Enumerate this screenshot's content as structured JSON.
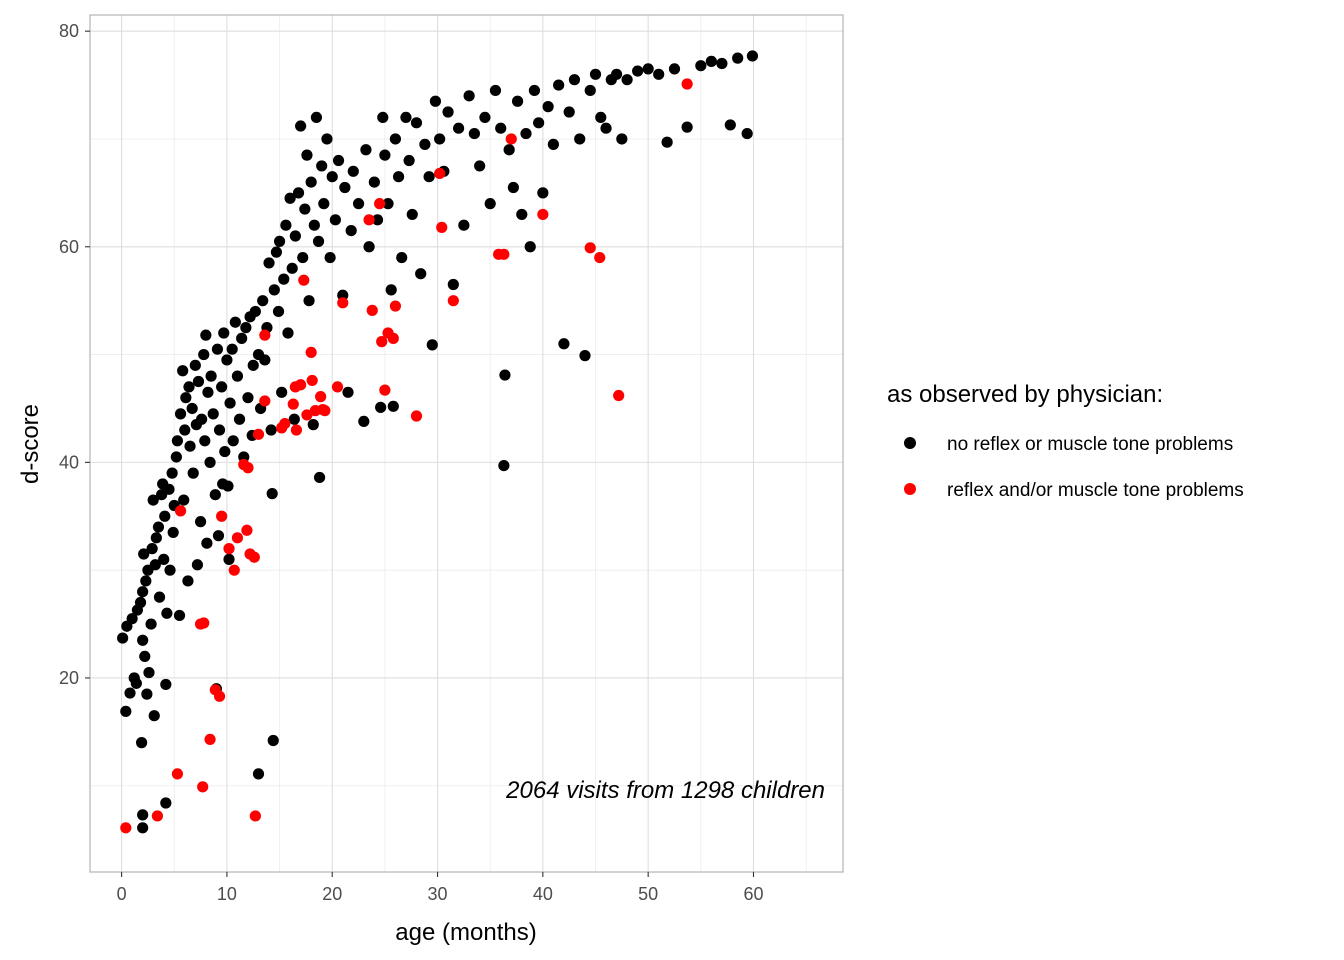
{
  "chart_data": {
    "type": "scatter",
    "title": "",
    "xlabel": "age (months)",
    "ylabel": "d-score",
    "xlim": [
      -3,
      68.5
    ],
    "ylim": [
      2,
      81.5
    ],
    "x_ticks": [
      "0",
      "10",
      "20",
      "30",
      "40",
      "50",
      "60"
    ],
    "y_ticks": [
      "20",
      "40",
      "60",
      "80"
    ],
    "grid": true,
    "annotation": "2064 visits from 1298 children",
    "legend": {
      "title": "as observed by physician:",
      "placement": "right",
      "entries": [
        {
          "label": "no reflex or muscle tone problems",
          "color": "#000000"
        },
        {
          "label": "reflex and/or muscle tone problems",
          "color": "#ff0000"
        }
      ]
    },
    "series": [
      {
        "name": "no reflex or muscle tone problems",
        "color": "#000000",
        "points": [
          [
            0.1,
            23.7
          ],
          [
            0.4,
            16.9
          ],
          [
            0.5,
            24.8
          ],
          [
            0.8,
            18.6
          ],
          [
            1.0,
            25.5
          ],
          [
            1.2,
            20.0
          ],
          [
            1.4,
            19.5
          ],
          [
            1.5,
            26.3
          ],
          [
            1.8,
            27.0
          ],
          [
            1.9,
            14.0
          ],
          [
            2.0,
            7.3
          ],
          [
            2.0,
            6.1
          ],
          [
            2.0,
            23.5
          ],
          [
            2.0,
            28.0
          ],
          [
            2.1,
            31.5
          ],
          [
            2.2,
            22.0
          ],
          [
            2.3,
            29.0
          ],
          [
            2.4,
            18.5
          ],
          [
            2.5,
            30.0
          ],
          [
            2.6,
            20.5
          ],
          [
            2.8,
            25.0
          ],
          [
            2.9,
            32.0
          ],
          [
            3.0,
            36.5
          ],
          [
            3.1,
            16.5
          ],
          [
            3.2,
            30.5
          ],
          [
            3.3,
            33.0
          ],
          [
            3.5,
            34.0
          ],
          [
            3.6,
            27.5
          ],
          [
            3.8,
            37.0
          ],
          [
            3.9,
            38.0
          ],
          [
            4.0,
            31.0
          ],
          [
            4.1,
            35.0
          ],
          [
            4.2,
            8.4
          ],
          [
            4.2,
            19.4
          ],
          [
            4.3,
            26.0
          ],
          [
            4.5,
            37.5
          ],
          [
            4.6,
            30.0
          ],
          [
            4.8,
            39.0
          ],
          [
            4.9,
            33.5
          ],
          [
            5.0,
            36.0
          ],
          [
            5.2,
            40.5
          ],
          [
            5.3,
            42.0
          ],
          [
            5.5,
            25.8
          ],
          [
            5.6,
            44.5
          ],
          [
            5.8,
            48.5
          ],
          [
            5.9,
            36.5
          ],
          [
            6.0,
            43.0
          ],
          [
            6.1,
            46.0
          ],
          [
            6.3,
            29.0
          ],
          [
            6.4,
            47.0
          ],
          [
            6.5,
            41.5
          ],
          [
            6.7,
            45.0
          ],
          [
            6.8,
            39.0
          ],
          [
            7.0,
            49.0
          ],
          [
            7.1,
            43.5
          ],
          [
            7.2,
            30.5
          ],
          [
            7.3,
            47.5
          ],
          [
            7.5,
            34.5
          ],
          [
            7.6,
            44.0
          ],
          [
            7.8,
            50.0
          ],
          [
            7.9,
            42.0
          ],
          [
            8.0,
            51.8
          ],
          [
            8.1,
            32.5
          ],
          [
            8.2,
            46.5
          ],
          [
            8.4,
            40.0
          ],
          [
            8.5,
            48.0
          ],
          [
            8.7,
            44.5
          ],
          [
            8.9,
            37.0
          ],
          [
            9.0,
            19.0
          ],
          [
            9.1,
            50.5
          ],
          [
            9.2,
            33.2
          ],
          [
            9.3,
            43.0
          ],
          [
            9.5,
            47.0
          ],
          [
            9.6,
            38.0
          ],
          [
            9.7,
            52.0
          ],
          [
            9.8,
            41.0
          ],
          [
            10.0,
            49.5
          ],
          [
            10.1,
            37.8
          ],
          [
            10.2,
            31.0
          ],
          [
            10.3,
            45.5
          ],
          [
            10.5,
            50.5
          ],
          [
            10.6,
            42.0
          ],
          [
            10.8,
            53.0
          ],
          [
            11.0,
            48.0
          ],
          [
            11.2,
            44.0
          ],
          [
            11.4,
            51.5
          ],
          [
            11.6,
            40.5
          ],
          [
            11.8,
            52.5
          ],
          [
            12.0,
            46.0
          ],
          [
            12.2,
            53.5
          ],
          [
            12.4,
            42.5
          ],
          [
            12.5,
            49.0
          ],
          [
            12.7,
            54.0
          ],
          [
            13.0,
            11.1
          ],
          [
            13.0,
            50.0
          ],
          [
            13.2,
            45.0
          ],
          [
            13.4,
            55.0
          ],
          [
            13.6,
            49.5
          ],
          [
            13.8,
            52.5
          ],
          [
            14.0,
            58.5
          ],
          [
            14.2,
            43.0
          ],
          [
            14.3,
            37.1
          ],
          [
            14.4,
            14.2
          ],
          [
            14.5,
            56.0
          ],
          [
            14.7,
            59.5
          ],
          [
            14.9,
            54.0
          ],
          [
            15.0,
            60.5
          ],
          [
            15.2,
            46.5
          ],
          [
            15.4,
            57.0
          ],
          [
            15.6,
            62.0
          ],
          [
            15.8,
            52.0
          ],
          [
            16.0,
            64.5
          ],
          [
            16.2,
            58.0
          ],
          [
            16.4,
            44.0
          ],
          [
            16.5,
            61.0
          ],
          [
            16.8,
            65.0
          ],
          [
            17.0,
            71.2
          ],
          [
            17.2,
            59.0
          ],
          [
            17.4,
            63.5
          ],
          [
            17.6,
            68.5
          ],
          [
            17.8,
            55.0
          ],
          [
            18.0,
            66.0
          ],
          [
            18.2,
            43.5
          ],
          [
            18.3,
            62.0
          ],
          [
            18.5,
            72.0
          ],
          [
            18.7,
            60.5
          ],
          [
            18.8,
            38.6
          ],
          [
            19.0,
            67.5
          ],
          [
            19.2,
            64.0
          ],
          [
            19.5,
            70.0
          ],
          [
            19.8,
            59.0
          ],
          [
            20.0,
            66.5
          ],
          [
            20.3,
            62.5
          ],
          [
            20.6,
            68.0
          ],
          [
            21.0,
            55.5
          ],
          [
            21.2,
            65.5
          ],
          [
            21.5,
            46.5
          ],
          [
            21.8,
            61.5
          ],
          [
            22.0,
            67.0
          ],
          [
            22.5,
            64.0
          ],
          [
            23.0,
            43.8
          ],
          [
            23.2,
            69.0
          ],
          [
            23.5,
            60.0
          ],
          [
            24.0,
            66.0
          ],
          [
            24.3,
            62.5
          ],
          [
            24.6,
            45.1
          ],
          [
            24.8,
            72.0
          ],
          [
            25.0,
            68.5
          ],
          [
            25.3,
            64.0
          ],
          [
            25.6,
            56.0
          ],
          [
            25.8,
            45.2
          ],
          [
            26.0,
            70.0
          ],
          [
            26.3,
            66.5
          ],
          [
            26.6,
            59.0
          ],
          [
            27.0,
            72.0
          ],
          [
            27.3,
            68.0
          ],
          [
            27.6,
            63.0
          ],
          [
            28.0,
            71.5
          ],
          [
            28.4,
            57.5
          ],
          [
            28.8,
            69.5
          ],
          [
            29.2,
            66.5
          ],
          [
            29.5,
            50.9
          ],
          [
            29.8,
            73.5
          ],
          [
            30.2,
            70.0
          ],
          [
            30.6,
            67.0
          ],
          [
            31.0,
            72.5
          ],
          [
            31.5,
            56.5
          ],
          [
            32.0,
            71.0
          ],
          [
            32.5,
            62.0
          ],
          [
            33.0,
            74.0
          ],
          [
            33.5,
            70.5
          ],
          [
            34.0,
            67.5
          ],
          [
            34.5,
            72.0
          ],
          [
            35.0,
            64.0
          ],
          [
            35.5,
            74.5
          ],
          [
            36.0,
            71.0
          ],
          [
            36.3,
            39.7
          ],
          [
            36.4,
            48.1
          ],
          [
            36.8,
            69.0
          ],
          [
            37.2,
            65.5
          ],
          [
            37.6,
            73.5
          ],
          [
            38.0,
            63.0
          ],
          [
            38.4,
            70.5
          ],
          [
            38.8,
            60.0
          ],
          [
            39.2,
            74.5
          ],
          [
            39.6,
            71.5
          ],
          [
            40.0,
            65.0
          ],
          [
            40.5,
            73.0
          ],
          [
            41.0,
            69.5
          ],
          [
            41.5,
            75.0
          ],
          [
            42.0,
            51.0
          ],
          [
            42.5,
            72.5
          ],
          [
            43.0,
            75.5
          ],
          [
            43.5,
            70.0
          ],
          [
            44.0,
            49.9
          ],
          [
            44.5,
            74.5
          ],
          [
            45.0,
            76.0
          ],
          [
            45.5,
            72.0
          ],
          [
            46.0,
            71.0
          ],
          [
            46.5,
            75.5
          ],
          [
            47.0,
            76.0
          ],
          [
            47.5,
            70.0
          ],
          [
            48.0,
            75.5
          ],
          [
            49.0,
            76.3
          ],
          [
            50.0,
            76.5
          ],
          [
            51.0,
            76.0
          ],
          [
            51.8,
            69.7
          ],
          [
            52.5,
            76.5
          ],
          [
            53.7,
            71.1
          ],
          [
            55.0,
            76.8
          ],
          [
            56.0,
            77.2
          ],
          [
            57.0,
            77.0
          ],
          [
            57.8,
            71.3
          ],
          [
            58.5,
            77.5
          ],
          [
            59.4,
            70.5
          ],
          [
            59.9,
            77.7
          ]
        ]
      },
      {
        "name": "reflex and/or muscle tone problems",
        "color": "#ff0000",
        "points": [
          [
            0.4,
            6.1
          ],
          [
            3.4,
            7.2
          ],
          [
            5.3,
            11.1
          ],
          [
            5.6,
            35.5
          ],
          [
            7.5,
            25.0
          ],
          [
            7.8,
            25.1
          ],
          [
            7.7,
            9.9
          ],
          [
            8.4,
            14.3
          ],
          [
            8.9,
            18.9
          ],
          [
            9.3,
            18.3
          ],
          [
            9.5,
            35.0
          ],
          [
            10.2,
            32.0
          ],
          [
            10.7,
            30.0
          ],
          [
            11.0,
            33.0
          ],
          [
            11.6,
            39.8
          ],
          [
            12.0,
            39.5
          ],
          [
            11.9,
            33.7
          ],
          [
            12.2,
            31.5
          ],
          [
            12.6,
            31.2
          ],
          [
            12.7,
            7.2
          ],
          [
            13.0,
            42.6
          ],
          [
            13.6,
            45.7
          ],
          [
            13.6,
            51.8
          ],
          [
            15.2,
            43.2
          ],
          [
            15.5,
            43.6
          ],
          [
            16.3,
            45.4
          ],
          [
            16.5,
            47.0
          ],
          [
            16.6,
            43.0
          ],
          [
            17.0,
            47.2
          ],
          [
            17.3,
            56.9
          ],
          [
            17.6,
            44.4
          ],
          [
            18.0,
            50.2
          ],
          [
            18.1,
            47.6
          ],
          [
            18.4,
            44.8
          ],
          [
            18.9,
            46.1
          ],
          [
            19.1,
            44.9
          ],
          [
            19.3,
            44.8
          ],
          [
            20.5,
            47.0
          ],
          [
            21.0,
            54.8
          ],
          [
            23.5,
            62.5
          ],
          [
            23.8,
            54.1
          ],
          [
            24.5,
            64.0
          ],
          [
            24.7,
            51.2
          ],
          [
            25.0,
            46.7
          ],
          [
            25.3,
            52.0
          ],
          [
            25.8,
            51.5
          ],
          [
            26.0,
            54.5
          ],
          [
            28.0,
            44.3
          ],
          [
            30.2,
            66.8
          ],
          [
            30.4,
            61.8
          ],
          [
            31.5,
            55.0
          ],
          [
            35.8,
            59.3
          ],
          [
            36.3,
            59.3
          ],
          [
            37.0,
            70.0
          ],
          [
            40.0,
            63.0
          ],
          [
            44.5,
            59.9
          ],
          [
            45.4,
            59.0
          ],
          [
            47.2,
            46.2
          ],
          [
            53.7,
            75.1
          ]
        ]
      }
    ]
  }
}
